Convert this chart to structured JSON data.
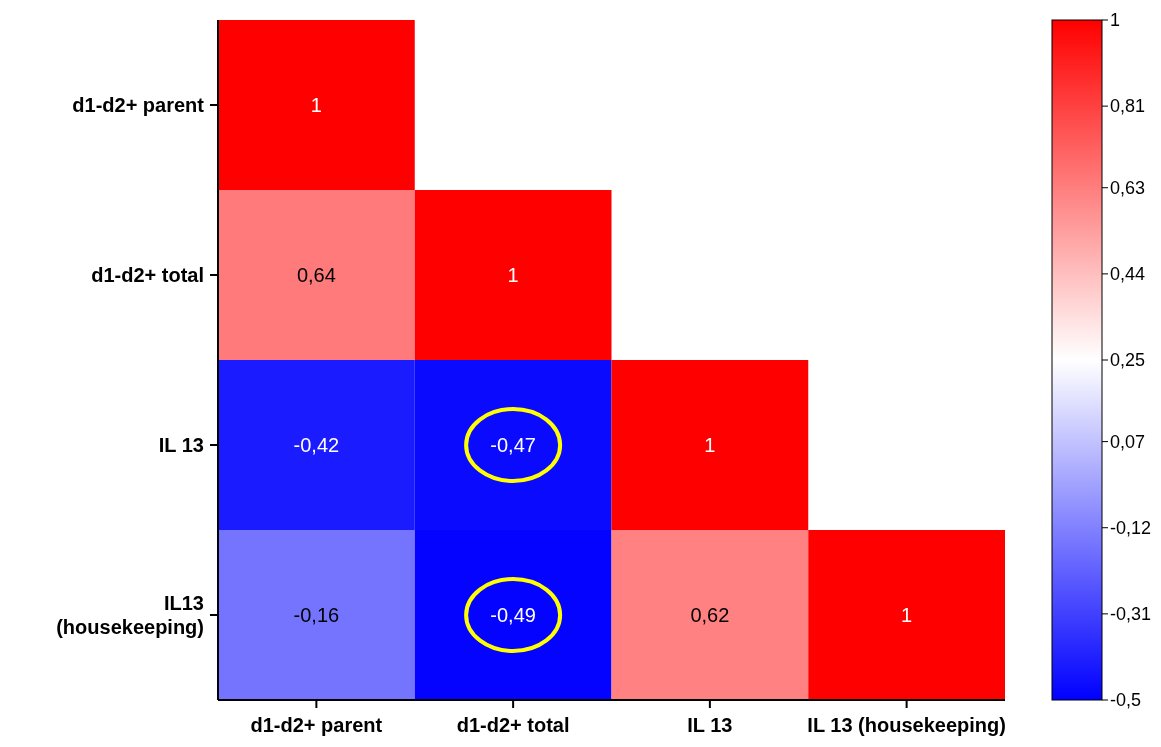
{
  "chart_data": {
    "type": "heatmap",
    "categories": [
      "d1-d2+ parent",
      "d1-d2+ total",
      "IL 13",
      "IL 13 (housekeeping)"
    ],
    "y_categories": [
      "d1-d2+ parent",
      "d1-d2+ total",
      "IL 13",
      "IL13 (housekeeping)"
    ],
    "cells": [
      [
        1,
        null,
        null,
        null
      ],
      [
        0.64,
        1,
        null,
        null
      ],
      [
        -0.42,
        -0.47,
        1,
        null
      ],
      [
        -0.16,
        -0.49,
        0.62,
        1
      ]
    ],
    "cell_labels": [
      [
        "1",
        null,
        null,
        null
      ],
      [
        "0,64",
        "1",
        null,
        null
      ],
      [
        "-0,42",
        "-0,47",
        "1",
        null
      ],
      [
        "-0,16",
        "-0,49",
        "0,62",
        "1"
      ]
    ],
    "clim": [
      -0.5,
      1
    ],
    "cticks": [
      {
        "value": -0.5,
        "label": "-0,5"
      },
      {
        "value": -0.31,
        "label": "-0,31"
      },
      {
        "value": -0.12,
        "label": "-0,12"
      },
      {
        "value": 0.07,
        "label": "0,07"
      },
      {
        "value": 0.25,
        "label": "0,25"
      },
      {
        "value": 0.44,
        "label": "0,44"
      },
      {
        "value": 0.63,
        "label": "0,63"
      },
      {
        "value": 0.81,
        "label": "0,81"
      },
      {
        "value": 1,
        "label": "1"
      }
    ]
  }
}
